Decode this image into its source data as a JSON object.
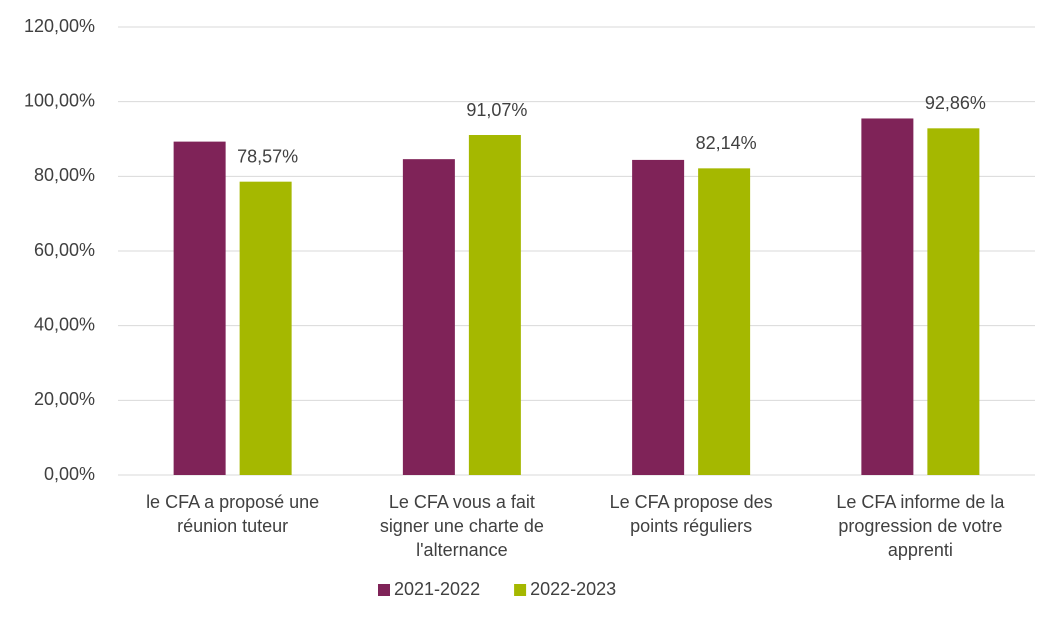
{
  "chart_data": {
    "type": "bar",
    "categories": [
      "le CFA a proposé une réunion tuteur",
      "Le CFA vous a fait signer une charte de l'alternance",
      "Le CFA propose des points réguliers",
      "Le CFA informe de la progression de votre apprenti"
    ],
    "series": [
      {
        "name": "2021-2022",
        "color": "#7f2358",
        "values": [
          89.3,
          84.6,
          84.4,
          95.5
        ]
      },
      {
        "name": "2022-2023",
        "color": "#a5b800",
        "values": [
          78.57,
          91.07,
          82.14,
          92.86
        ],
        "value_labels": [
          "78,57%",
          "91,07%",
          "82,14%",
          "92,86%"
        ]
      }
    ],
    "ylim": [
      0,
      120
    ],
    "yticks": [
      {
        "value": 0,
        "label": "0,00%"
      },
      {
        "value": 20,
        "label": "20,00%"
      },
      {
        "value": 40,
        "label": "40,00%"
      },
      {
        "value": 60,
        "label": "60,00%"
      },
      {
        "value": 80,
        "label": "80,00%"
      },
      {
        "value": 100,
        "label": "100,00%"
      },
      {
        "value": 120,
        "label": "120,00%"
      }
    ],
    "grid": true,
    "legend": "bottom"
  }
}
